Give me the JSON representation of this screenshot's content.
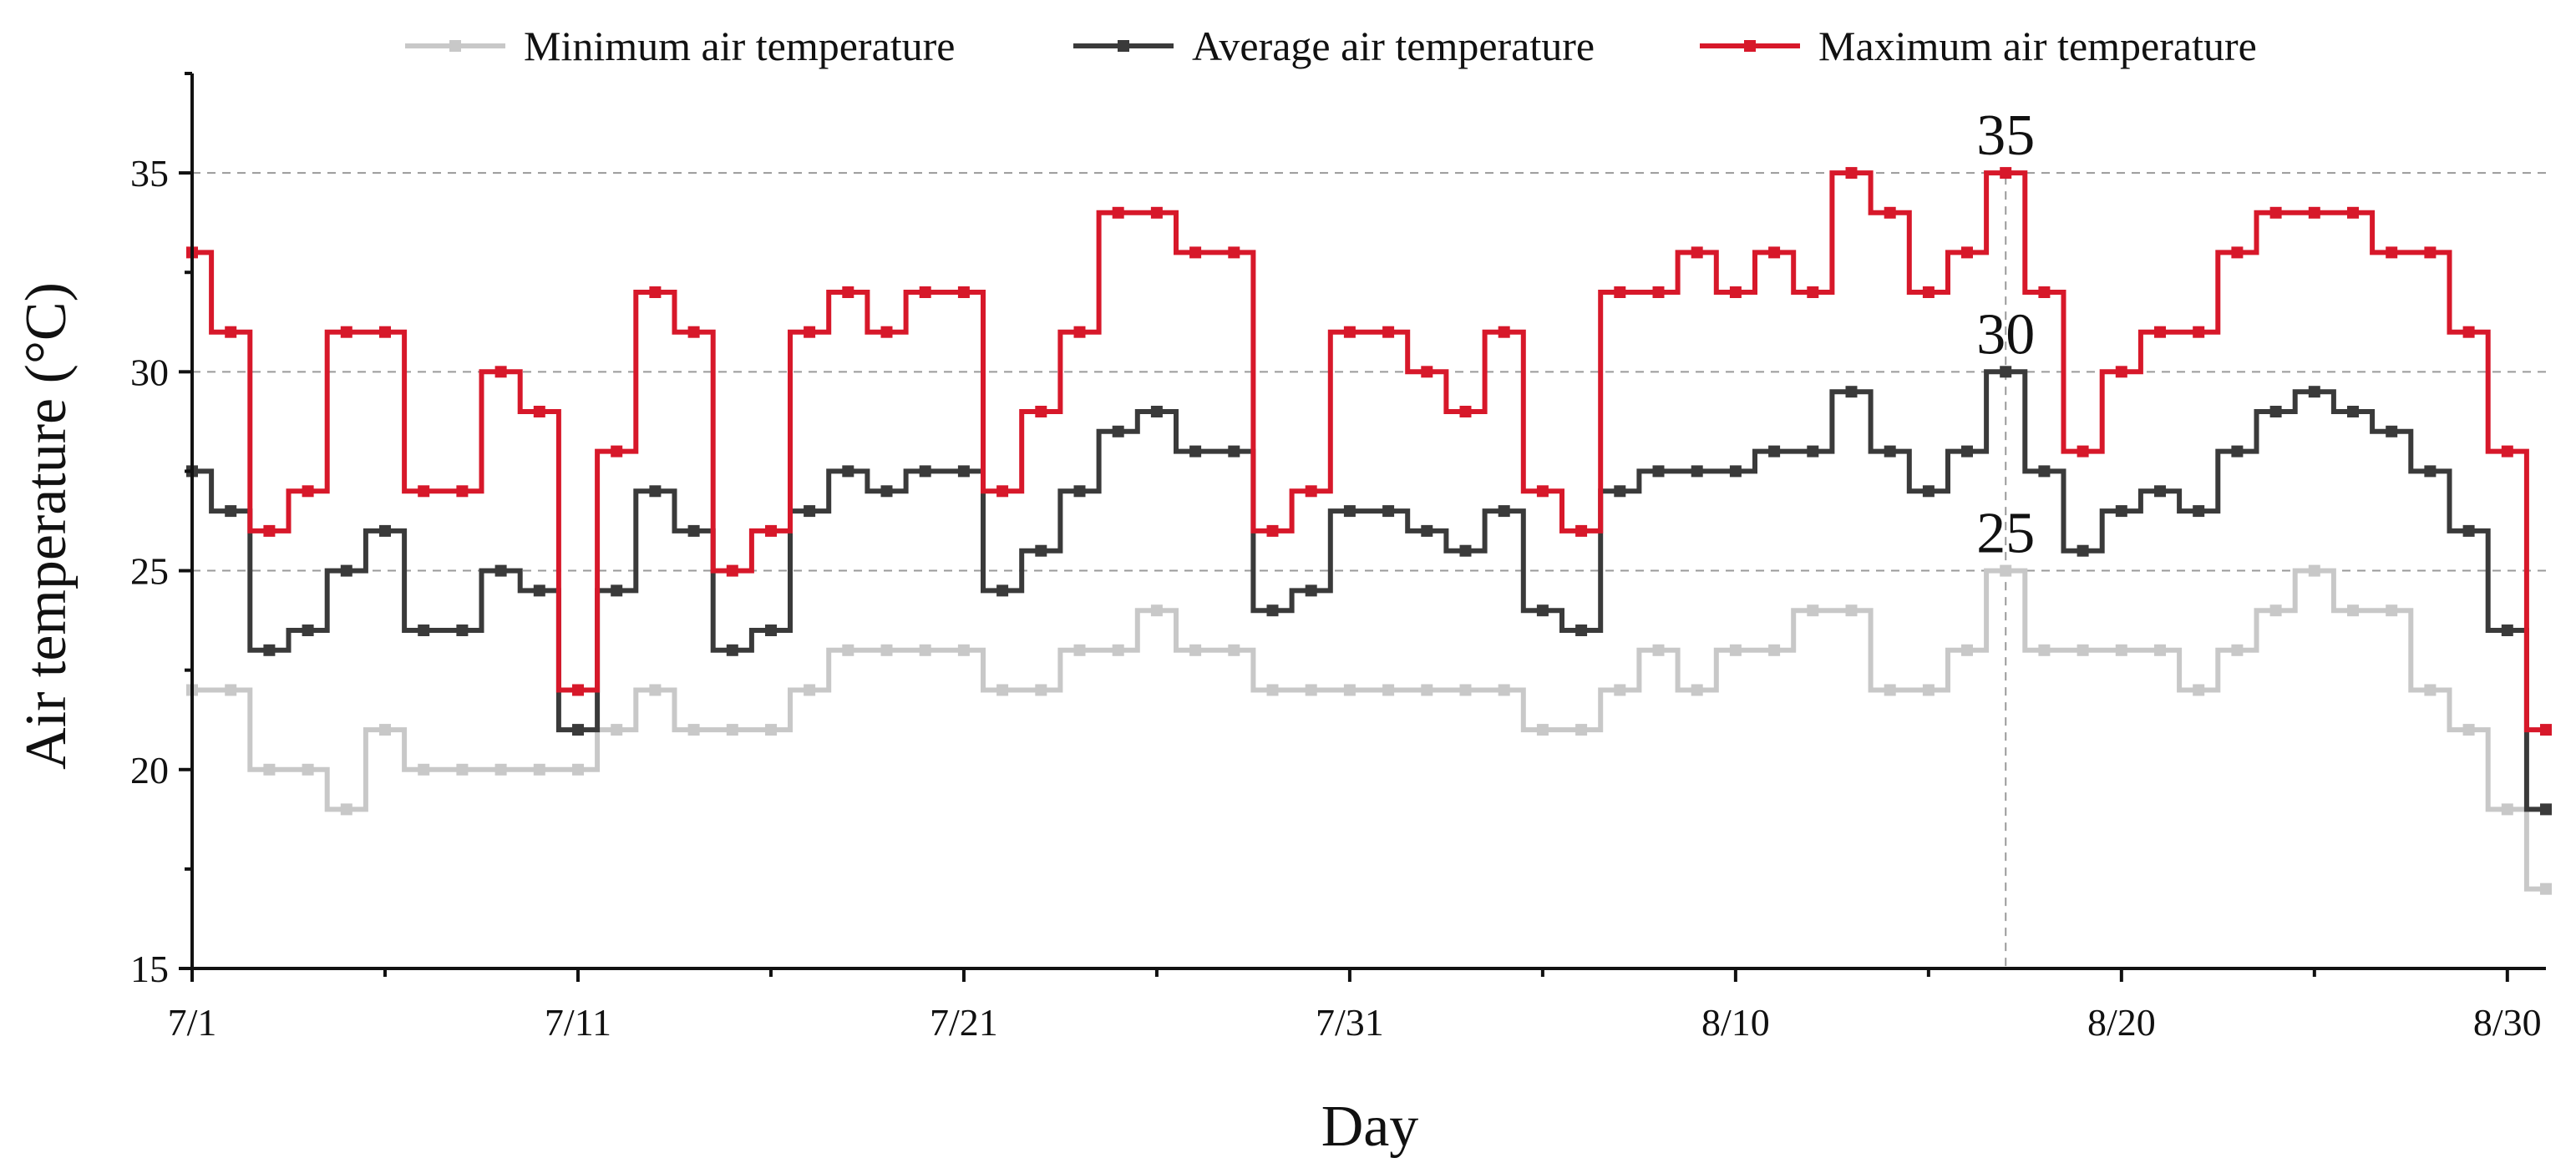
{
  "chart_data": {
    "type": "line",
    "style": "step",
    "title": "",
    "xlabel": "Day",
    "ylabel": "Air temperature (°C)",
    "ylim": [
      15,
      37.5
    ],
    "yticks": [
      15,
      20,
      25,
      30,
      35
    ],
    "ytick_labels": [
      "15",
      "20",
      "25",
      "30",
      "35"
    ],
    "gridlines_y": [
      25,
      30,
      35
    ],
    "xlim": [
      1,
      62
    ],
    "xticks": [
      1,
      11,
      21,
      31,
      41,
      51,
      61
    ],
    "xtick_labels": [
      "7/1",
      "7/11",
      "7/21",
      "7/31",
      "8/10",
      "8/20",
      "8/30"
    ],
    "x_minor_ticks": [
      6,
      16,
      26,
      36,
      46,
      56
    ],
    "marker_day": 48,
    "legend_position": "top",
    "x": [
      1,
      2,
      3,
      4,
      5,
      6,
      7,
      8,
      9,
      10,
      11,
      12,
      13,
      14,
      15,
      16,
      17,
      18,
      19,
      20,
      21,
      22,
      23,
      24,
      25,
      26,
      27,
      28,
      29,
      30,
      31,
      32,
      33,
      34,
      35,
      36,
      37,
      38,
      39,
      40,
      41,
      42,
      43,
      44,
      45,
      46,
      47,
      48,
      49,
      50,
      51,
      52,
      53,
      54,
      55,
      56,
      57,
      58,
      59,
      60,
      61,
      62
    ],
    "series": [
      {
        "name": "Minimum air temperature",
        "color": "#c8c8c8",
        "values": [
          22,
          22,
          20,
          20,
          19,
          21,
          20,
          20,
          20,
          20,
          20,
          21,
          22,
          21,
          21,
          21,
          22,
          23,
          23,
          23,
          23,
          22,
          22,
          23,
          23,
          24,
          23,
          23,
          22,
          22,
          22,
          22,
          22,
          22,
          22,
          21,
          21,
          22,
          23,
          22,
          23,
          23,
          24,
          24,
          22,
          22,
          23,
          25,
          23,
          23,
          23,
          23,
          22,
          23,
          24,
          25,
          24,
          24,
          22,
          21,
          19,
          17
        ]
      },
      {
        "name": "Average air temperature",
        "color": "#3a3a3a",
        "values": [
          27.5,
          26.5,
          23,
          23.5,
          25,
          26,
          23.5,
          23.5,
          25,
          24.5,
          21,
          24.5,
          27,
          26,
          23,
          23.5,
          26.5,
          27.5,
          27,
          27.5,
          27.5,
          24.5,
          25.5,
          27,
          28.5,
          29,
          28,
          28,
          24,
          24.5,
          26.5,
          26.5,
          26,
          25.5,
          26.5,
          24,
          23.5,
          27,
          27.5,
          27.5,
          27.5,
          28,
          28,
          29.5,
          28,
          27,
          28,
          30,
          27.5,
          25.5,
          26.5,
          27,
          26.5,
          28,
          29,
          29.5,
          29,
          28.5,
          27.5,
          26,
          23.5,
          19
        ]
      },
      {
        "name": "Maximum air temperature",
        "color": "#d7182a",
        "values": [
          33,
          31,
          26,
          27,
          31,
          31,
          27,
          27,
          30,
          29,
          22,
          28,
          32,
          31,
          25,
          26,
          31,
          32,
          31,
          32,
          32,
          27,
          29,
          31,
          34,
          34,
          33,
          33,
          26,
          27,
          31,
          31,
          30,
          29,
          31,
          27,
          26,
          32,
          32,
          33,
          32,
          33,
          32,
          35,
          34,
          32,
          33,
          35,
          32,
          28,
          30,
          31,
          31,
          33,
          34,
          34,
          34,
          33,
          33,
          31,
          28,
          21
        ]
      }
    ],
    "annotations": [
      "35",
      "30",
      "25"
    ]
  }
}
